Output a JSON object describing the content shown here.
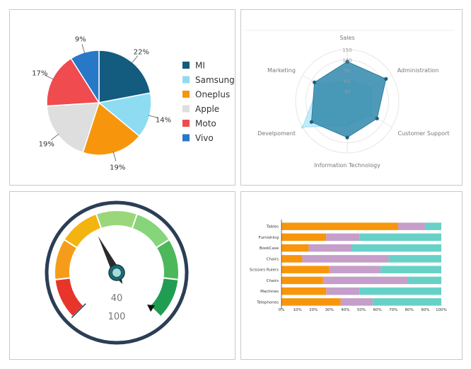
{
  "chart_data": [
    {
      "type": "pie",
      "categories": [
        "MI",
        "Samsung",
        "Oneplus",
        "Apple",
        "Moto",
        "Vivo"
      ],
      "values": [
        22,
        14,
        19,
        19,
        17,
        9
      ],
      "labels": [
        "22%",
        "14%",
        "19%",
        "19%",
        "17%",
        "9%"
      ],
      "colors": [
        "#135b7f",
        "#8ddcf2",
        "#f7960c",
        "#dedede",
        "#f04b4e",
        "#2878c8"
      ],
      "legend": "right"
    },
    {
      "type": "radar",
      "axes": [
        "Sales",
        "Administration",
        "Customer Support",
        "Information Technology",
        "Develpoment",
        "Marketing"
      ],
      "ticks": [
        "30",
        "60",
        "90",
        "120",
        "150"
      ],
      "rmax": 150,
      "series": [
        {
          "values": [
            60,
            80,
            80,
            70,
            150,
            95
          ],
          "color": "#bfe9f8"
        },
        {
          "values": [
            115,
            130,
            100,
            105,
            120,
            110
          ],
          "color": "#3b8fb0"
        }
      ]
    },
    {
      "type": "gauge",
      "value": 40,
      "max": 100,
      "value_label": "40",
      "max_label": "100",
      "band_colors": [
        "#e8352c",
        "#f59d1b",
        "#f4b40f",
        "#9ad77a",
        "#86d57a",
        "#4cb85a",
        "#219d53"
      ]
    },
    {
      "type": "bar",
      "orientation": "horizontal",
      "stacked": "percent",
      "categories": [
        "Tables",
        "Furnishing",
        "BookCase",
        "Chairs",
        "Scissors Rulers",
        "Chairs",
        "Machines",
        "Telephones"
      ],
      "series": [
        {
          "values": [
            73,
            28,
            17,
            13,
            30,
            26,
            28,
            37
          ],
          "color": "#f7960c"
        },
        {
          "values": [
            17,
            21,
            27,
            54,
            32,
            53,
            21,
            20
          ],
          "color": "#c59ec9"
        },
        {
          "values": [
            10,
            51,
            56,
            33,
            38,
            21,
            51,
            43
          ],
          "color": "#67d1c8"
        }
      ],
      "xticks": [
        "0%",
        "10%",
        "20%",
        "30%",
        "40%",
        "50%",
        "60%",
        "70%",
        "80%",
        "90%",
        "100%"
      ],
      "xlim": [
        0,
        100
      ]
    }
  ]
}
